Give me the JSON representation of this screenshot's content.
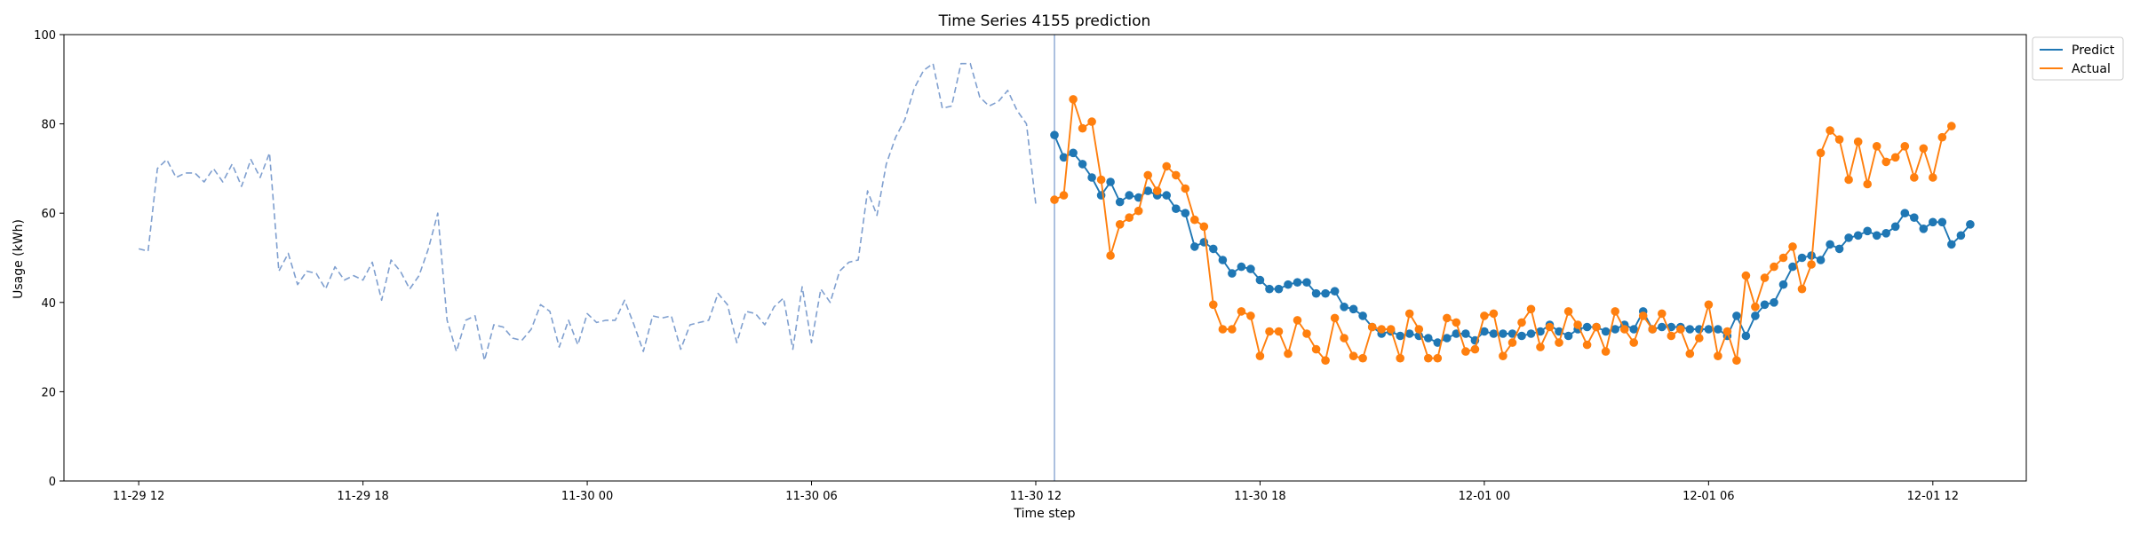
{
  "chart_data": {
    "type": "line",
    "title": "Time Series 4155 prediction",
    "xlabel": "Time step",
    "ylabel": "Usage (kWh)",
    "ylim": [
      0,
      100
    ],
    "yticks": [
      0,
      20,
      40,
      60,
      80,
      100
    ],
    "xlim": [
      "2024-11-29 10:00",
      "2024-12-01 14:30"
    ],
    "xticks": [
      {
        "label": "11-29 12",
        "t": "2024-11-29 12:00"
      },
      {
        "label": "11-29 18",
        "t": "2024-11-29 18:00"
      },
      {
        "label": "11-30 00",
        "t": "2024-11-30 00:00"
      },
      {
        "label": "11-30 06",
        "t": "2024-11-30 06:00"
      },
      {
        "label": "11-30 12",
        "t": "2024-11-30 12:00"
      },
      {
        "label": "11-30 18",
        "t": "2024-11-30 18:00"
      },
      {
        "label": "12-01 00",
        "t": "2024-12-01 00:00"
      },
      {
        "label": "12-01 06",
        "t": "2024-12-01 06:00"
      },
      {
        "label": "12-01 12",
        "t": "2024-12-01 12:00"
      }
    ],
    "grid": false,
    "legend_position": "upper right, outside",
    "forecast_start": "2024-11-30 12:30",
    "series": [
      {
        "role": "history",
        "style": "dashed",
        "color": "#7f9fcf",
        "start": "2024-11-29 12:00",
        "step_minutes": 15,
        "values": [
          52,
          51.5,
          70,
          72,
          68,
          69,
          69,
          67,
          70,
          67,
          71,
          66,
          72,
          68,
          73.5,
          47,
          51,
          44,
          47,
          46.5,
          43,
          48,
          45,
          46,
          45,
          49,
          40.5,
          49.5,
          47,
          43,
          46,
          52,
          60,
          36,
          29,
          36,
          37,
          27,
          35,
          34.5,
          32,
          31.5,
          34,
          39.5,
          38,
          30,
          36,
          30.5,
          37.5,
          35.5,
          36,
          36,
          40.5,
          35,
          29,
          37,
          36.5,
          37,
          29.5,
          35,
          35.5,
          36,
          42,
          39.5,
          31,
          38,
          37.5,
          35,
          39,
          41,
          29.5,
          43.5,
          31,
          43,
          40,
          47,
          49,
          49.5,
          65,
          59.5,
          71,
          77,
          81,
          88,
          92,
          93.5,
          83.5,
          84,
          93.5,
          93.5,
          86,
          84,
          85,
          87.5,
          83,
          80,
          62
        ]
      },
      {
        "name": "Predict",
        "color": "#1f77b4",
        "start": "2024-11-30 12:30",
        "step_minutes": 15,
        "values": [
          77.5,
          72.5,
          73.5,
          71,
          68,
          64,
          67,
          62.5,
          64,
          63.5,
          65,
          64,
          64,
          61,
          60,
          52.5,
          53.5,
          52,
          49.5,
          46.5,
          48,
          47.5,
          45,
          43,
          43,
          44,
          44.5,
          44.5,
          42,
          42,
          42.5,
          39,
          38.5,
          37,
          34.5,
          33,
          33.5,
          32.5,
          33,
          32.5,
          32,
          31,
          32,
          33,
          33,
          31.5,
          33.5,
          33,
          33,
          33,
          32.5,
          33,
          33.5,
          35,
          33.5,
          32.5,
          34,
          34.5,
          34.5,
          33.5,
          34,
          35,
          34,
          38,
          34,
          34.5,
          34.5,
          34.5,
          34,
          34,
          34,
          34,
          32.5,
          37,
          32.5,
          37,
          39.5,
          40,
          44,
          48,
          50,
          50.5,
          49.5,
          53,
          52,
          54.5,
          55,
          56,
          55,
          55.5,
          57,
          60,
          59,
          56.5,
          58,
          58,
          53,
          55,
          57.5
        ]
      },
      {
        "name": "Actual",
        "color": "#ff7f0e",
        "start": "2024-11-30 12:30",
        "step_minutes": 15,
        "values": [
          63,
          64,
          85.5,
          79,
          80.5,
          67.5,
          50.5,
          57.5,
          59,
          60.5,
          68.5,
          65,
          70.5,
          68.5,
          65.5,
          58.5,
          57,
          39.5,
          34,
          34,
          38,
          37,
          28,
          33.5,
          33.5,
          28.5,
          36,
          33,
          29.5,
          27,
          36.5,
          32,
          28,
          27.5,
          34.5,
          34,
          34,
          27.5,
          37.5,
          34,
          27.5,
          27.5,
          36.5,
          35.5,
          29,
          29.5,
          37,
          37.5,
          28,
          31,
          35.5,
          38.5,
          30,
          34.5,
          31,
          38,
          35,
          30.5,
          34.5,
          29,
          38,
          34,
          31,
          37,
          34,
          37.5,
          32.5,
          34,
          28.5,
          32,
          39.5,
          28,
          33.5,
          27,
          46,
          39,
          45.5,
          48,
          50,
          52.5,
          43,
          48.5,
          73.5,
          78.5,
          76.5,
          67.5,
          76,
          66.5,
          75,
          71.5,
          72.5,
          75,
          68,
          74.5,
          68,
          77,
          79.5
        ]
      }
    ]
  },
  "legend": {
    "items": [
      {
        "label": "Predict",
        "color": "#1f77b4"
      },
      {
        "label": "Actual",
        "color": "#ff7f0e"
      }
    ]
  }
}
